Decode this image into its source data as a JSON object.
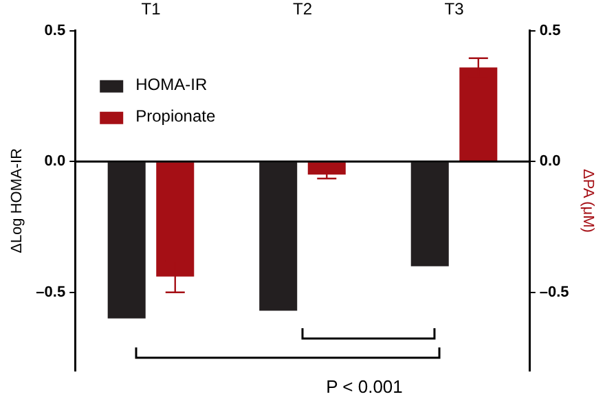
{
  "chart_data": {
    "type": "bar",
    "categories": [
      "T1",
      "T2",
      "T3"
    ],
    "ylabel": "ΔLog HOMA-IR",
    "y2label": "ΔPA (μM)",
    "ylim": [
      -0.8,
      0.5
    ],
    "yticks": [
      {
        "value": -0.5,
        "label": "–0.5"
      },
      {
        "value": 0,
        "label": "0.0"
      },
      {
        "value": 0.5,
        "label": "0.5"
      }
    ],
    "y2lim": [
      -0.8,
      0.5
    ],
    "y2ticks": [
      {
        "value": -0.5,
        "label": "–0.5"
      },
      {
        "value": 0,
        "label": "0.0"
      },
      {
        "value": 0.5,
        "label": "0.5"
      }
    ],
    "series": [
      {
        "name": "HOMA-IR",
        "color": "#231f20",
        "values": [
          -0.6,
          -0.57,
          -0.4
        ]
      },
      {
        "name": "Propionate",
        "color": "#a50f15",
        "values": [
          -0.44,
          -0.05,
          0.36
        ],
        "errors": [
          0.06,
          0.015,
          0.035
        ],
        "axis": "y2"
      }
    ],
    "ref_lines": [
      {
        "axis": "y",
        "value": 0,
        "color": "#000000"
      }
    ],
    "annotations": [
      "P < 0.001"
    ],
    "grid": false,
    "legend": "top left"
  }
}
